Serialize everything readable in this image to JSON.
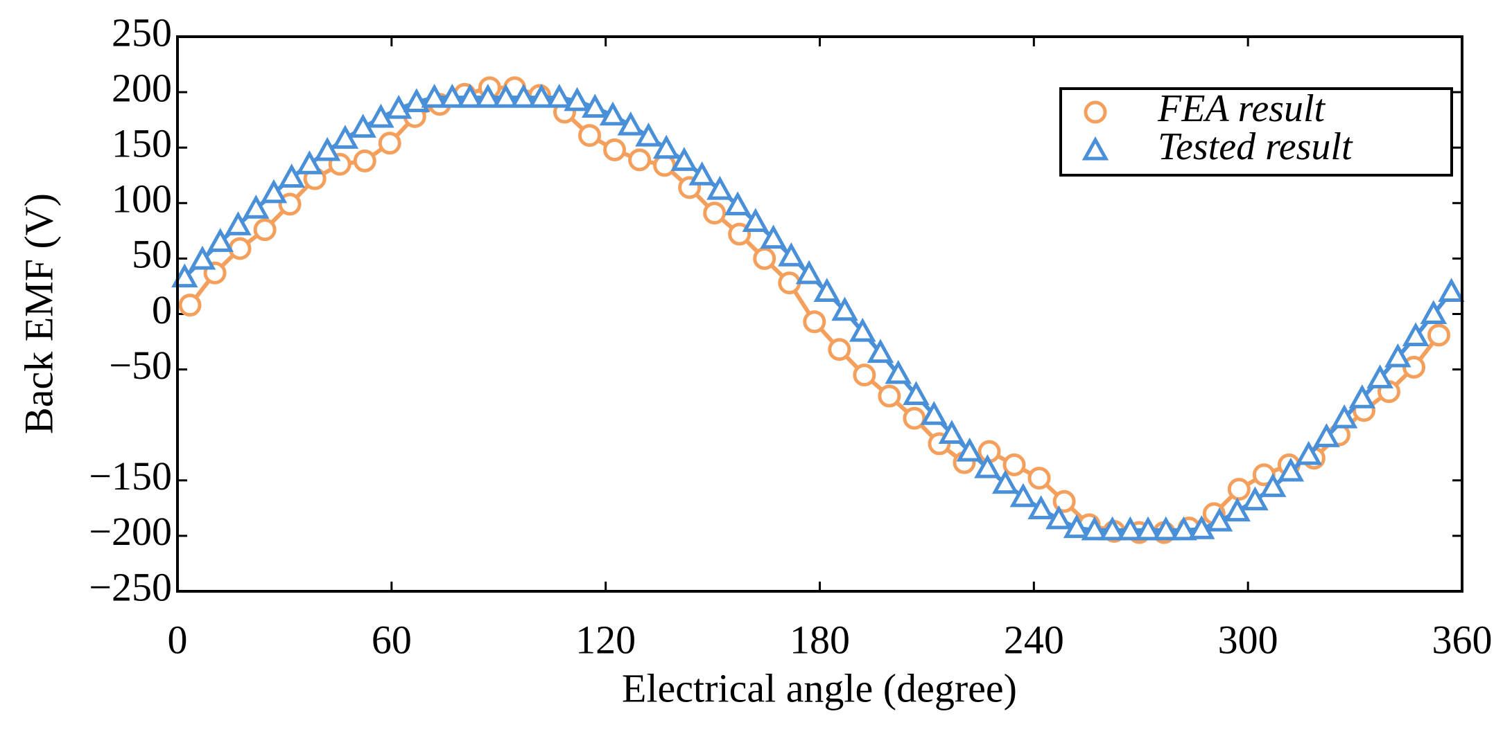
{
  "chart_data": {
    "type": "line",
    "xlabel": "Electrical angle (degree)",
    "ylabel": "Back EMF (V)",
    "xlim": [
      0,
      360
    ],
    "ylim": [
      -250,
      250
    ],
    "xticks": [
      0,
      60,
      120,
      180,
      240,
      300,
      360
    ],
    "yticks": [
      250,
      200,
      150,
      100,
      50,
      0,
      {
        "value": -50,
        "label": "−50"
      },
      {
        "value": -150,
        "label": "−150"
      },
      {
        "value": -200,
        "label": "−200"
      },
      {
        "value": -250,
        "label": "−250"
      }
    ],
    "legend": "upper right",
    "series": [
      {
        "name": "FEA result",
        "color": "#f4a05c",
        "marker": "circle",
        "x": [
          3.5,
          10.5,
          17.5,
          24.5,
          31.5,
          38.5,
          45.5,
          52.5,
          59.5,
          66.5,
          73.5,
          80.5,
          87.5,
          94.5,
          101.5,
          108.5,
          115.5,
          122.5,
          129.5,
          136.5,
          143.5,
          150.5,
          157.5,
          164.5,
          171.5,
          178.5,
          185.5,
          192.5,
          199.5,
          206.5,
          213.5,
          220.5,
          227.5,
          234.5,
          241.5,
          248.5,
          255.5,
          262.5,
          269.5,
          276.5,
          283.5,
          290.5,
          297.5,
          304.5,
          311.5,
          318.5,
          325.5,
          332.5,
          339.5,
          346.5,
          353.5
        ],
        "values": [
          8,
          37,
          59,
          76,
          99,
          122,
          135,
          138,
          154,
          178,
          189,
          198,
          204,
          204,
          197,
          182,
          161,
          148,
          139,
          134,
          114,
          91,
          72,
          50,
          28,
          -7,
          -32,
          -55,
          -74,
          -94,
          -117,
          -134,
          -124,
          -136,
          -148,
          -169,
          -190,
          -196,
          -197,
          -197,
          -193,
          -180,
          -158,
          -145,
          -136,
          -130,
          -109,
          -87,
          -70,
          -48,
          -19
        ]
      },
      {
        "name": "Tested result",
        "color": "#4a90d9",
        "marker": "triangle",
        "x": [
          2,
          7,
          12,
          17,
          22,
          27,
          32,
          37,
          42,
          47,
          52,
          57,
          62,
          67,
          72,
          77,
          82,
          87,
          92,
          97,
          102,
          107,
          112,
          117,
          122,
          127,
          132,
          137,
          142,
          147,
          152,
          157,
          162,
          167,
          172,
          177,
          182,
          187,
          192,
          197,
          202,
          207,
          212,
          217,
          222,
          227,
          232,
          237,
          242,
          247,
          252,
          257,
          262,
          267,
          272,
          277,
          282,
          287,
          292,
          297,
          302,
          307,
          312,
          317,
          322,
          327,
          332,
          337,
          342,
          347,
          352,
          357
        ],
        "values": [
          33,
          49,
          65,
          80,
          95,
          109,
          123,
          135,
          147,
          158,
          168,
          177,
          185,
          191,
          195,
          195,
          195,
          195,
          195,
          195,
          195,
          195,
          192,
          186,
          179,
          170,
          160,
          149,
          138,
          125,
          112,
          98,
          83,
          68,
          52,
          36,
          20,
          3,
          -16,
          -35,
          -54,
          -73,
          -91,
          -108,
          -124,
          -139,
          -153,
          -165,
          -176,
          -185,
          -193,
          -195,
          -195,
          -195,
          -195,
          -195,
          -195,
          -194,
          -187,
          -178,
          -168,
          -156,
          -142,
          -127,
          -111,
          -94,
          -76,
          -58,
          -39,
          -20,
          0,
          20
        ]
      }
    ]
  }
}
